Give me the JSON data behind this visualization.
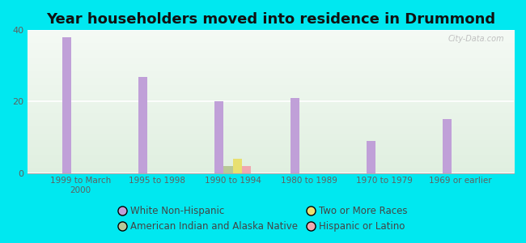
{
  "title": "Year householders moved into residence in Drummond",
  "categories": [
    "1999 to March\n2000",
    "1995 to 1998",
    "1990 to 1994",
    "1980 to 1989",
    "1970 to 1979",
    "1969 or earlier"
  ],
  "series": {
    "White Non-Hispanic": [
      38,
      27,
      20,
      21,
      9,
      15
    ],
    "American Indian and Alaska Native": [
      0,
      0,
      2,
      0,
      0,
      0
    ],
    "Two or More Races": [
      0,
      0,
      4,
      0,
      0,
      0
    ],
    "Hispanic or Latino": [
      0,
      0,
      2,
      0,
      0,
      0
    ]
  },
  "colors": {
    "White Non-Hispanic": "#c0a0d8",
    "American Indian and Alaska Native": "#b8c898",
    "Two or More Races": "#e8e070",
    "Hispanic or Latino": "#f0a8b0"
  },
  "ylim": [
    0,
    40
  ],
  "yticks": [
    0,
    20,
    40
  ],
  "background_color": "#00e8f0",
  "title_fontsize": 13,
  "bar_width": 0.12,
  "legend_fontsize": 8.5
}
